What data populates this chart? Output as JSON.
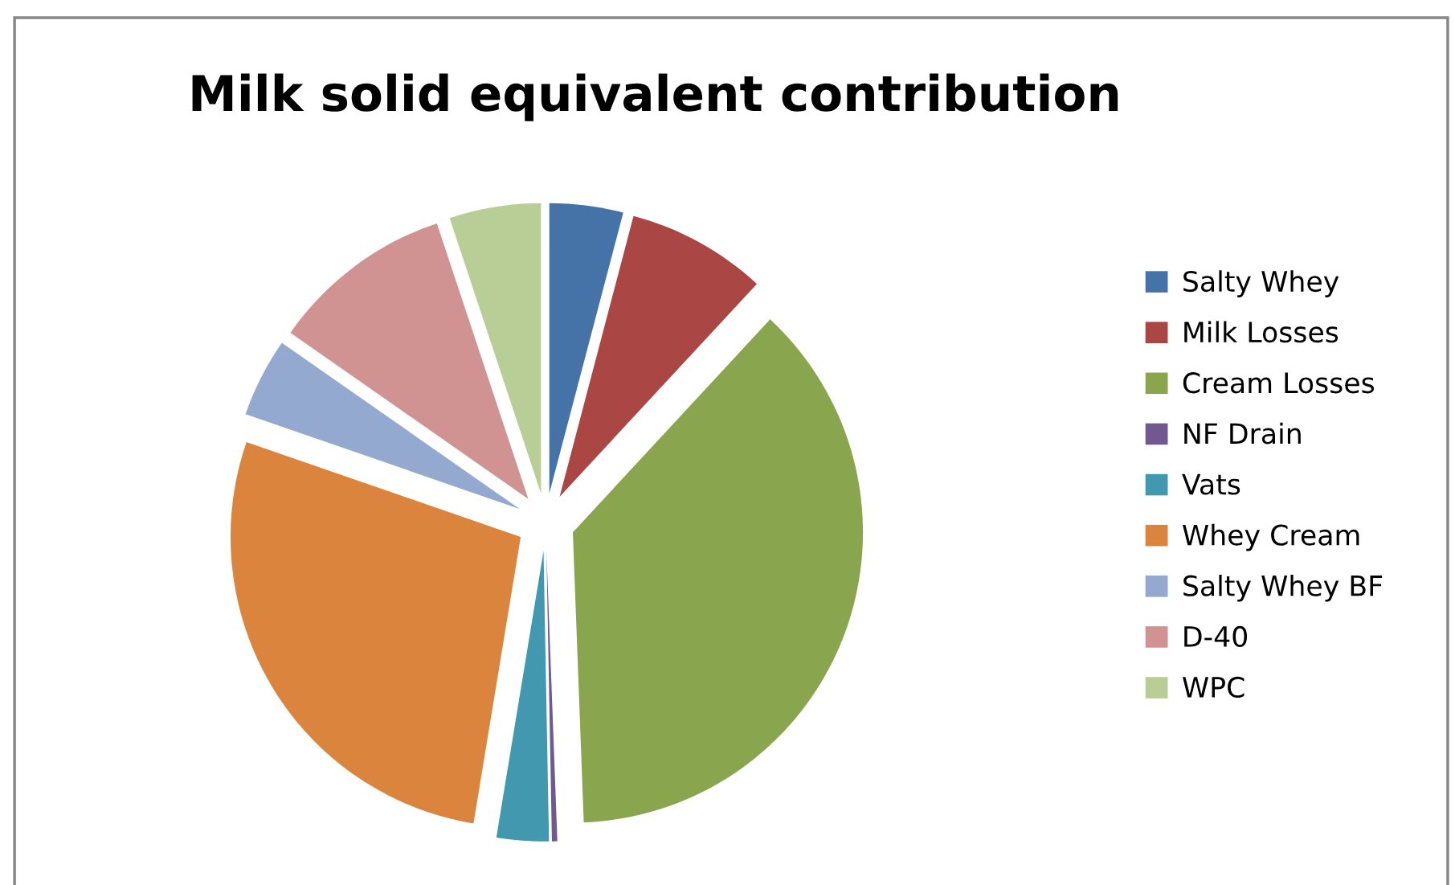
{
  "chart_data": {
    "type": "pie",
    "title": "Milk solid equivalent contribution",
    "categories": [
      "Salty Whey",
      "Milk Losses",
      "Cream Losses",
      "NF Drain",
      "Vats",
      "Whey Cream",
      "Salty Whey BF",
      "D-40",
      "WPC"
    ],
    "values": [
      4.1,
      7.8,
      37.5,
      0.3,
      2.9,
      27.7,
      4.4,
      10.2,
      5.1
    ],
    "colors": [
      "#4572a7",
      "#aa4643",
      "#89a54e",
      "#71588f",
      "#4198af",
      "#db843d",
      "#93a9cf",
      "#d19392",
      "#b9cd96"
    ],
    "legend": "right"
  }
}
